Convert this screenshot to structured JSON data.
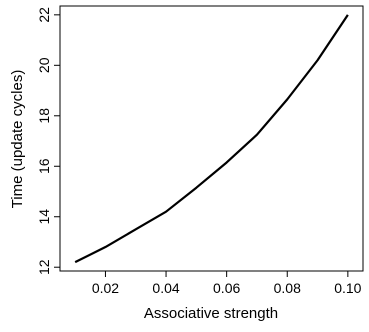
{
  "chart_data": {
    "type": "line",
    "title": "",
    "xlabel": "Associative strength",
    "ylabel": "Time (update cycles)",
    "xlim": [
      0.005,
      0.105
    ],
    "ylim": [
      11.85,
      22.35
    ],
    "x_ticks": [
      0.02,
      0.04,
      0.06,
      0.08,
      0.1
    ],
    "x_tick_labels": [
      "0.02",
      "0.04",
      "0.06",
      "0.08",
      "0.10"
    ],
    "y_ticks": [
      12,
      14,
      16,
      18,
      20,
      22
    ],
    "y_tick_labels": [
      "12",
      "14",
      "16",
      "18",
      "20",
      "22"
    ],
    "grid": false,
    "series": [
      {
        "x": [
          0.01,
          0.02,
          0.03,
          0.04,
          0.05,
          0.06,
          0.07,
          0.08,
          0.09,
          0.1
        ],
        "y": [
          12.2,
          12.8,
          13.5,
          14.2,
          15.15,
          16.15,
          17.25,
          18.65,
          20.2,
          22.0
        ]
      }
    ]
  }
}
